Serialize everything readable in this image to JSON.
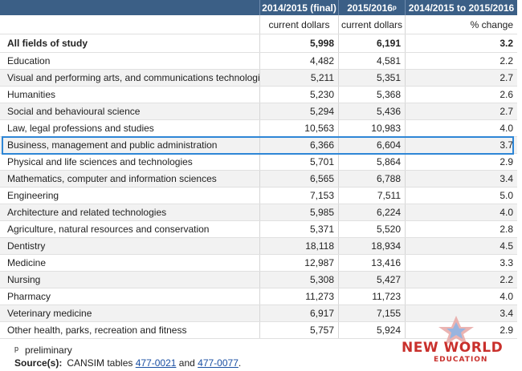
{
  "table": {
    "headers": [
      "",
      "2014/2015 (final)",
      "2015/2016",
      "2014/2015 to 2015/2016"
    ],
    "header_sup": "p",
    "units": [
      "",
      "current dollars",
      "current dollars",
      "% change"
    ],
    "total": {
      "label": "All fields of study",
      "v1": "5,998",
      "v2": "6,191",
      "v3": "3.2"
    },
    "rows": [
      {
        "label": "Education",
        "v1": "4,482",
        "v2": "4,581",
        "v3": "2.2"
      },
      {
        "label": "Visual and performing arts, and communications technologies",
        "v1": "5,211",
        "v2": "5,351",
        "v3": "2.7"
      },
      {
        "label": "Humanities",
        "v1": "5,230",
        "v2": "5,368",
        "v3": "2.6"
      },
      {
        "label": "Social and behavioural science",
        "v1": "5,294",
        "v2": "5,436",
        "v3": "2.7"
      },
      {
        "label": "Law, legal professions and studies",
        "v1": "10,563",
        "v2": "10,983",
        "v3": "4.0"
      },
      {
        "label": "Business, management and public administration",
        "v1": "6,366",
        "v2": "6,604",
        "v3": "3.7"
      },
      {
        "label": "Physical and life sciences and technologies",
        "v1": "5,701",
        "v2": "5,864",
        "v3": "2.9"
      },
      {
        "label": "Mathematics, computer and information sciences",
        "v1": "6,565",
        "v2": "6,788",
        "v3": "3.4"
      },
      {
        "label": "Engineering",
        "v1": "7,153",
        "v2": "7,511",
        "v3": "5.0"
      },
      {
        "label": "Architecture and related technologies",
        "v1": "5,985",
        "v2": "6,224",
        "v3": "4.0"
      },
      {
        "label": "Agriculture, natural resources and conservation",
        "v1": "5,371",
        "v2": "5,520",
        "v3": "2.8"
      },
      {
        "label": "Dentistry",
        "v1": "18,118",
        "v2": "18,934",
        "v3": "4.5"
      },
      {
        "label": "Medicine",
        "v1": "12,987",
        "v2": "13,416",
        "v3": "3.3"
      },
      {
        "label": "Nursing",
        "v1": "5,308",
        "v2": "5,427",
        "v3": "2.2"
      },
      {
        "label": "Pharmacy",
        "v1": "11,273",
        "v2": "11,723",
        "v3": "4.0"
      },
      {
        "label": "Veterinary medicine",
        "v1": "6,917",
        "v2": "7,155",
        "v3": "3.4"
      },
      {
        "label": "Other health, parks, recreation and fitness",
        "v1": "5,757",
        "v2": "5,924",
        "v3": "2.9"
      }
    ]
  },
  "footnote": {
    "symbol": "p",
    "text": "preliminary"
  },
  "source": {
    "label": "Source(s):",
    "prefix": "CANSIM tables",
    "link1": "477-0021",
    "joiner": "and",
    "link2": "477-0077",
    "suffix": "."
  },
  "watermark": {
    "line1": "NEW WORLD",
    "line2": "EDUCATION"
  },
  "colors": {
    "header_bg": "#3b5f86",
    "highlight": "#2e86d6",
    "zebra": "#f2f2f2",
    "watermark": "#c9302c"
  }
}
